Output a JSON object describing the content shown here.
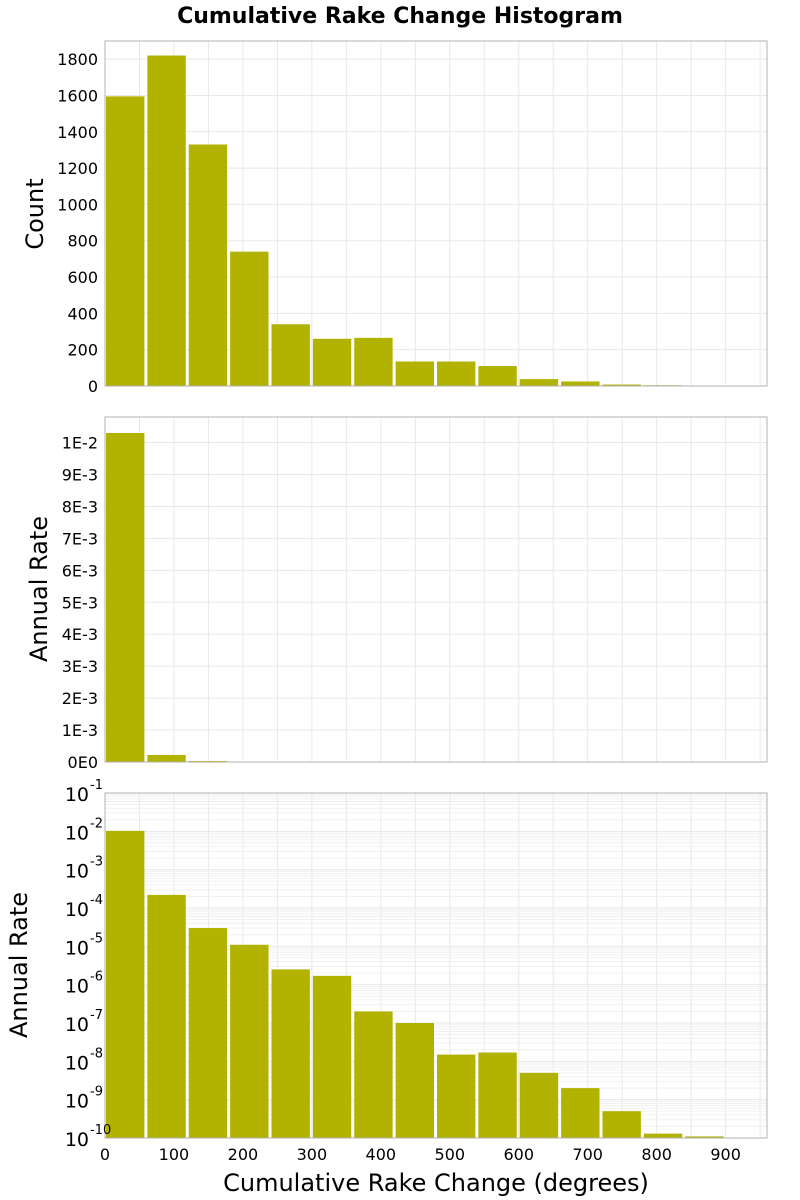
{
  "chart_data": [
    {
      "type": "bar",
      "name": "count",
      "title": "Cumulative Rake Change Histogram",
      "ylabel": "Count",
      "xlabel": "",
      "bin_width": 60,
      "x": [
        30,
        90,
        150,
        210,
        270,
        330,
        390,
        450,
        510,
        570,
        630,
        690,
        750,
        810,
        870
      ],
      "values": [
        1595,
        1820,
        1330,
        740,
        340,
        260,
        265,
        135,
        135,
        110,
        38,
        25,
        8,
        4,
        2
      ],
      "xlim": [
        0,
        960
      ],
      "ylim": [
        0,
        1900
      ],
      "yticks": [
        0,
        200,
        400,
        600,
        800,
        1000,
        1200,
        1400,
        1600,
        1800
      ],
      "yticklabels": [
        "0",
        "200",
        "400",
        "600",
        "800",
        "1000",
        "1200",
        "1400",
        "1600",
        "1800"
      ]
    },
    {
      "type": "bar",
      "name": "rate-linear",
      "ylabel": "Annual Rate",
      "xlabel": "",
      "bin_width": 60,
      "x": [
        30,
        90,
        150,
        210,
        270,
        330,
        390,
        450,
        510,
        570,
        630,
        690,
        750,
        810,
        870
      ],
      "values": [
        0.0103,
        0.00022,
        3e-05,
        1.1e-05,
        2.5e-06,
        1.7e-06,
        2e-07,
        1e-07,
        1.5e-08,
        1.7e-08,
        5e-09,
        2e-09,
        5e-10,
        1.3e-10,
        1.1e-10
      ],
      "xlim": [
        0,
        960
      ],
      "ylim": [
        0,
        0.0108
      ],
      "yticks": [
        0,
        0.001,
        0.002,
        0.003,
        0.004,
        0.005,
        0.006,
        0.007,
        0.008,
        0.009,
        0.01
      ],
      "yticklabels": [
        "0E0",
        "1E-3",
        "2E-3",
        "3E-3",
        "4E-3",
        "5E-3",
        "6E-3",
        "7E-3",
        "8E-3",
        "9E-3",
        "1E-2"
      ]
    },
    {
      "type": "bar",
      "name": "rate-log",
      "yscale": "log",
      "ylabel": "Annual Rate",
      "xlabel": "Cumulative Rake Change (degrees)",
      "bin_width": 60,
      "x": [
        30,
        90,
        150,
        210,
        270,
        330,
        390,
        450,
        510,
        570,
        630,
        690,
        750,
        810,
        870
      ],
      "values": [
        0.0103,
        0.00022,
        3e-05,
        1.1e-05,
        2.5e-06,
        1.7e-06,
        2e-07,
        1e-07,
        1.5e-08,
        1.7e-08,
        5e-09,
        2e-09,
        5e-10,
        1.3e-10,
        1.1e-10
      ],
      "xlim": [
        0,
        960
      ],
      "ylim_exp": [
        -10,
        -1
      ],
      "ytick_base": "10",
      "ytick_exponents": [
        "-10",
        "-9",
        "-8",
        "-7",
        "-6",
        "-5",
        "-4",
        "-3",
        "-2",
        "-1"
      ],
      "xticks": [
        0,
        100,
        200,
        300,
        400,
        500,
        600,
        700,
        800,
        900
      ],
      "xticklabels": [
        "0",
        "100",
        "200",
        "300",
        "400",
        "500",
        "600",
        "700",
        "800",
        "900"
      ]
    }
  ],
  "colors": {
    "bar": "#b2b200",
    "frame": "#b0b0b0",
    "grid": "#e8e8e8"
  }
}
